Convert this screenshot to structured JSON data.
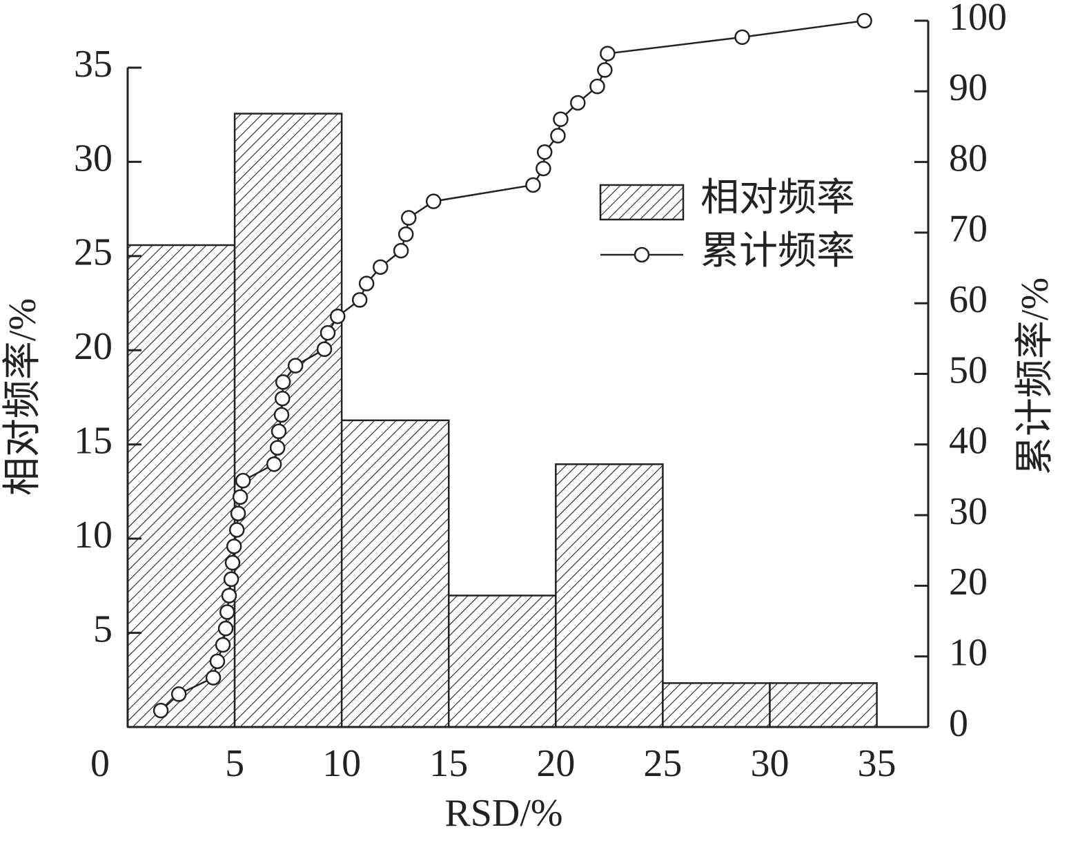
{
  "chart_data": {
    "type": "histogram",
    "x_label": "RSD/%",
    "y_label": "相对频率/%",
    "y2_label": "累计频率/%",
    "bins": [
      0,
      5,
      10,
      15,
      20,
      25,
      30,
      35
    ],
    "series": [
      {
        "name": "相对频率",
        "color": "#222222",
        "values": [
          25.58,
          32.56,
          16.28,
          6.98,
          13.95,
          2.33,
          2.33
        ]
      },
      {
        "name": "累计频率",
        "color": "#222222",
        "axis": "y2",
        "x": [
          1.55,
          2.39,
          4.0,
          4.19,
          4.45,
          4.58,
          4.65,
          4.74,
          4.84,
          4.9,
          4.97,
          5.1,
          5.16,
          5.26,
          5.39,
          6.84,
          7.0,
          7.06,
          7.19,
          7.23,
          7.26,
          7.84,
          9.19,
          9.35,
          9.81,
          10.84,
          11.16,
          11.81,
          12.77,
          13.0,
          13.13,
          14.29,
          18.94,
          19.42,
          19.48,
          20.1,
          20.23,
          21.03,
          21.94,
          22.29,
          22.42,
          28.71,
          34.42
        ],
        "values": [
          2.33,
          4.65,
          6.98,
          9.3,
          11.63,
          13.95,
          16.28,
          18.6,
          20.93,
          23.26,
          25.58,
          27.91,
          30.23,
          32.56,
          34.88,
          37.21,
          39.53,
          41.86,
          44.19,
          46.51,
          48.84,
          51.16,
          53.49,
          55.81,
          58.14,
          60.47,
          62.79,
          65.12,
          67.44,
          69.77,
          72.09,
          74.42,
          76.74,
          79.07,
          81.4,
          83.72,
          86.05,
          88.37,
          90.7,
          93.02,
          95.35,
          97.67,
          100
        ]
      }
    ],
    "xlim": [
      0,
      37.4
    ],
    "xticks": [
      0,
      5,
      10,
      15,
      20,
      25,
      30,
      35
    ],
    "ylim": [
      0,
      35
    ],
    "yticks": [
      5,
      10,
      15,
      20,
      25,
      30,
      35
    ],
    "y2lim": [
      0,
      100
    ],
    "y2ticks": [
      0,
      10,
      20,
      30,
      40,
      50,
      60,
      70,
      80,
      90,
      100
    ],
    "legend": "upper right",
    "grid": false
  }
}
